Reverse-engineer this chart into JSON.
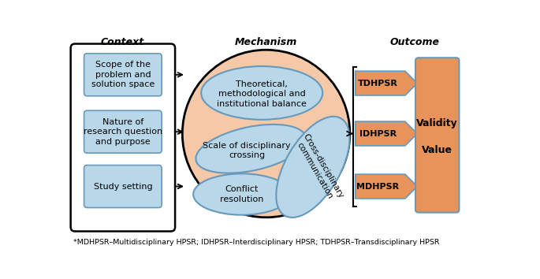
{
  "title_context": "Context",
  "title_mechanism": "Mechanism",
  "title_outcome": "Outcome",
  "context_boxes": [
    "Scope of the\nproblem and\nsolution space",
    "Nature of\nresearch question\nand purpose",
    "Study setting"
  ],
  "mechanism_circle_color": "#f5c8a8",
  "mechanism_inner_color": "#b8d8ea",
  "mechanism_inner_edge": "#6699bb",
  "outcome_arrows": [
    "TDHPSR",
    "IDHPSR",
    "MDHPSR"
  ],
  "outcome_arrow_color": "#e8935a",
  "outcome_arrow_edge": "#6699bb",
  "outcome_box_color": "#e8935a",
  "outcome_box_edge": "#6699bb",
  "outcome_box_text1": "Validity",
  "outcome_box_text2": "Value",
  "context_box_color": "#b8d8ea",
  "context_box_edge": "#6699bb",
  "footnote": "*MDHPSR–Multidisciplinary HPSR; IDHPSR–Interdisciplinary HPSR; TDHPSR–Transdisciplinary HPSR",
  "bg_color": "#ffffff"
}
